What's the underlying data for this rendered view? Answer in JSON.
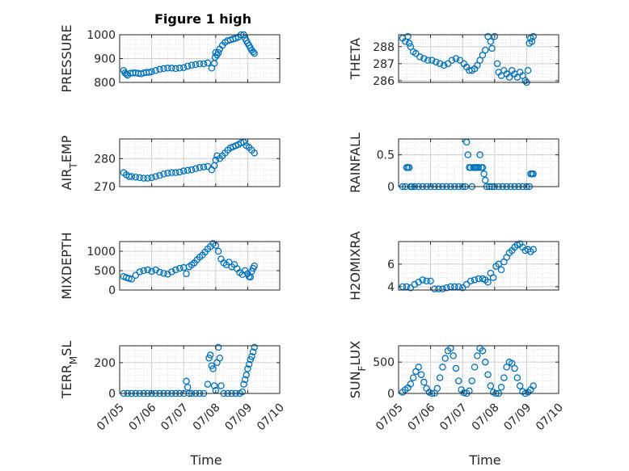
{
  "figure": {
    "title": "Figure 1 high",
    "background": "#ffffff"
  },
  "marker_color": "#0072BD",
  "grid_color": "#d9d9d9",
  "chart_data": [
    {
      "type": "scatter",
      "id": "pressure",
      "ylabel": "PRESSURE",
      "xlabel": "",
      "xlim": [
        "07/05",
        "07/10"
      ],
      "ylim": [
        800,
        1000
      ],
      "yticks": [
        800,
        900,
        1000
      ],
      "ytick_labels": [
        "800",
        "900",
        "1000"
      ],
      "x": [
        "07/05 03:00",
        "07/05 04:00",
        "07/05 05:00",
        "07/05 06:00",
        "07/05 08:00",
        "07/05 10:00",
        "07/05 12:00",
        "07/05 14:00",
        "07/05 16:00",
        "07/05 18:00",
        "07/05 20:00",
        "07/05 22:00",
        "07/06 00:00",
        "07/06 03:00",
        "07/06 06:00",
        "07/06 09:00",
        "07/06 12:00",
        "07/06 15:00",
        "07/06 18:00",
        "07/06 21:00",
        "07/07 00:00",
        "07/07 03:00",
        "07/07 06:00",
        "07/07 09:00",
        "07/07 12:00",
        "07/07 15:00",
        "07/07 18:00",
        "07/07 21:00",
        "07/07 23:00",
        "07/07 23:30",
        "07/08 00:00",
        "07/08 01:00",
        "07/08 02:00",
        "07/08 03:00",
        "07/08 05:00",
        "07/08 07:00",
        "07/08 09:00",
        "07/08 11:00",
        "07/08 13:00",
        "07/08 15:00",
        "07/08 17:00",
        "07/08 19:00",
        "07/08 21:00",
        "07/08 22:00",
        "07/08 23:00",
        "07/09 00:00",
        "07/09 01:00",
        "07/09 02:00",
        "07/09 03:00",
        "07/09 04:00",
        "07/09 05:00"
      ],
      "y": [
        850,
        840,
        835,
        830,
        838,
        840,
        840,
        838,
        836,
        840,
        842,
        842,
        845,
        850,
        855,
        858,
        860,
        860,
        858,
        860,
        862,
        868,
        872,
        875,
        878,
        878,
        882,
        860,
        880,
        905,
        925,
        915,
        925,
        940,
        955,
        968,
        975,
        978,
        982,
        985,
        990,
        1000,
        1000,
        985,
        975,
        965,
        955,
        945,
        935,
        928,
        922
      ]
    },
    {
      "type": "scatter",
      "id": "theta",
      "ylabel": "THETA",
      "xlabel": "",
      "xlim": [
        "07/05",
        "07/10"
      ],
      "ylim": [
        285.9,
        288.7
      ],
      "yticks": [
        286,
        287,
        288
      ],
      "ytick_labels": [
        "286",
        "287",
        "288"
      ],
      "x": [
        "07/05 03:00",
        "07/05 05:00",
        "07/05 07:00",
        "07/05 08:00",
        "07/05 09:00",
        "07/05 11:00",
        "07/05 13:00",
        "07/05 16:00",
        "07/05 19:00",
        "07/05 22:00",
        "07/06 01:00",
        "07/06 04:00",
        "07/06 07:00",
        "07/06 10:00",
        "07/06 13:00",
        "07/06 16:00",
        "07/06 19:00",
        "07/06 22:00",
        "07/07 01:00",
        "07/07 03:00",
        "07/07 05:00",
        "07/07 07:00",
        "07/07 09:00",
        "07/07 11:00",
        "07/07 13:00",
        "07/07 15:00",
        "07/07 17:00",
        "07/07 19:00",
        "07/07 21:00",
        "07/07 22:00",
        "07/08 00:00",
        "07/08 02:00",
        "07/08 03:00",
        "07/08 05:00",
        "07/08 07:00",
        "07/08 09:00",
        "07/08 11:00",
        "07/08 13:00",
        "07/08 15:00",
        "07/08 17:00",
        "07/08 19:00",
        "07/08 21:00",
        "07/08 23:00",
        "07/09 00:00",
        "07/09 01:00",
        "07/09 02:00",
        "07/09 03:00",
        "07/09 04:00",
        "07/09 05:00"
      ],
      "y": [
        288.5,
        288.3,
        288.6,
        288.2,
        288.0,
        287.7,
        287.6,
        287.4,
        287.3,
        287.2,
        287.2,
        287.1,
        287.0,
        286.9,
        287.0,
        287.2,
        287.3,
        287.2,
        287.0,
        286.8,
        286.6,
        286.6,
        286.7,
        286.9,
        287.2,
        287.5,
        287.8,
        288.6,
        288.3,
        287.9,
        288.6,
        287.0,
        286.5,
        286.3,
        286.6,
        286.4,
        286.2,
        286.6,
        286.4,
        286.2,
        286.5,
        286.3,
        286.0,
        285.9,
        286.6,
        288.2,
        288.5,
        288.3,
        288.6
      ]
    },
    {
      "type": "scatter",
      "id": "air-temp",
      "ylabel": "AIR_TEMP",
      "xlabel": "",
      "xlim": [
        "07/05",
        "07/10"
      ],
      "ylim": [
        270,
        287
      ],
      "yticks": [
        270,
        280
      ],
      "ytick_labels": [
        "270",
        "280"
      ],
      "x": [
        "07/05 03:00",
        "07/05 05:00",
        "07/05 07:00",
        "07/05 09:00",
        "07/05 12:00",
        "07/05 15:00",
        "07/05 18:00",
        "07/05 21:00",
        "07/06 00:00",
        "07/06 03:00",
        "07/06 06:00",
        "07/06 09:00",
        "07/06 12:00",
        "07/06 15:00",
        "07/06 18:00",
        "07/06 21:00",
        "07/07 00:00",
        "07/07 03:00",
        "07/07 06:00",
        "07/07 09:00",
        "07/07 12:00",
        "07/07 15:00",
        "07/07 18:00",
        "07/07 21:00",
        "07/07 23:00",
        "07/08 00:00",
        "07/08 01:00",
        "07/08 03:00",
        "07/08 05:00",
        "07/08 07:00",
        "07/08 09:00",
        "07/08 11:00",
        "07/08 13:00",
        "07/08 15:00",
        "07/08 17:00",
        "07/08 19:00",
        "07/08 21:00",
        "07/08 23:00",
        "07/09 01:00",
        "07/09 03:00",
        "07/09 05:00"
      ],
      "y": [
        275.0,
        274.2,
        273.6,
        273.6,
        273.4,
        273.2,
        273.0,
        273.0,
        273.2,
        273.6,
        274.0,
        274.5,
        274.8,
        275.0,
        275.0,
        275.2,
        275.6,
        275.8,
        276.0,
        276.4,
        276.8,
        277.0,
        277.2,
        276.0,
        277.5,
        279.5,
        281.0,
        280.0,
        281.0,
        282.0,
        283.0,
        283.8,
        284.2,
        284.6,
        285.0,
        285.6,
        285.8,
        284.6,
        284.0,
        283.0,
        282.0
      ]
    },
    {
      "type": "scatter",
      "id": "rainfall",
      "ylabel": "RAINFALL",
      "xlabel": "",
      "xlim": [
        "07/05",
        "07/10"
      ],
      "ylim": [
        0,
        0.75
      ],
      "yticks": [
        0,
        0.5
      ],
      "ytick_labels": [
        "0",
        "0.5"
      ],
      "x": [
        "07/05 03:00",
        "07/05 05:00",
        "07/05 06:00",
        "07/05 07:00",
        "07/05 08:00",
        "07/05 09:00",
        "07/05 10:00",
        "07/05 12:00",
        "07/05 15:00",
        "07/05 18:00",
        "07/05 21:00",
        "07/06 00:00",
        "07/06 03:00",
        "07/06 06:00",
        "07/06 09:00",
        "07/06 12:00",
        "07/06 15:00",
        "07/06 18:00",
        "07/06 21:00",
        "07/07 00:00",
        "07/07 02:00",
        "07/07 03:00",
        "07/07 04:00",
        "07/07 05:00",
        "07/07 06:00",
        "07/07 07:00",
        "07/07 08:00",
        "07/07 09:00",
        "07/07 10:00",
        "07/07 11:00",
        "07/07 12:00",
        "07/07 13:00",
        "07/07 14:00",
        "07/07 15:00",
        "07/07 16:00",
        "07/07 17:00",
        "07/07 18:00",
        "07/07 20:00",
        "07/07 22:00",
        "07/08 00:00",
        "07/08 03:00",
        "07/08 06:00",
        "07/08 09:00",
        "07/08 12:00",
        "07/08 15:00",
        "07/08 18:00",
        "07/08 21:00",
        "07/09 00:00",
        "07/09 02:00",
        "07/09 03:00",
        "07/09 04:00",
        "07/09 05:00"
      ],
      "y": [
        0,
        0,
        0.3,
        0.3,
        0.3,
        0,
        0,
        0,
        0,
        0,
        0,
        0,
        0,
        0,
        0,
        0,
        0,
        0,
        0,
        0,
        0,
        0.7,
        0.5,
        0.3,
        0.3,
        0,
        0.3,
        0.3,
        0.3,
        0.3,
        0.3,
        0.5,
        0.3,
        0.3,
        0.2,
        0.1,
        0,
        0,
        0,
        0,
        0,
        0,
        0,
        0,
        0,
        0,
        0,
        0,
        0,
        0.2,
        0.2,
        0.2
      ]
    },
    {
      "type": "scatter",
      "id": "mixdepth",
      "ylabel": "MIXDEPTH",
      "xlabel": "",
      "xlim": [
        "07/05",
        "07/10"
      ],
      "ylim": [
        0,
        1250
      ],
      "yticks": [
        0,
        500,
        1000
      ],
      "ytick_labels": [
        "0",
        "500",
        "1000"
      ],
      "x": [
        "07/05 03:00",
        "07/05 05:00",
        "07/05 07:00",
        "07/05 09:00",
        "07/05 12:00",
        "07/05 15:00",
        "07/05 18:00",
        "07/05 21:00",
        "07/06 00:00",
        "07/06 03:00",
        "07/06 06:00",
        "07/06 09:00",
        "07/06 12:00",
        "07/06 15:00",
        "07/06 18:00",
        "07/06 21:00",
        "07/07 00:00",
        "07/07 02:00",
        "07/07 04:00",
        "07/07 06:00",
        "07/07 08:00",
        "07/07 10:00",
        "07/07 12:00",
        "07/07 14:00",
        "07/07 16:00",
        "07/07 18:00",
        "07/07 20:00",
        "07/07 22:00",
        "07/08 00:00",
        "07/08 02:00",
        "07/08 04:00",
        "07/08 06:00",
        "07/08 08:00",
        "07/08 10:00",
        "07/08 12:00",
        "07/08 14:00",
        "07/08 16:00",
        "07/08 18:00",
        "07/08 20:00",
        "07/08 22:00",
        "07/09 00:00",
        "07/09 01:00",
        "07/09 02:00",
        "07/09 03:00",
        "07/09 04:00",
        "07/09 05:00"
      ],
      "y": [
        350,
        320,
        300,
        280,
        380,
        470,
        500,
        520,
        480,
        520,
        460,
        430,
        410,
        470,
        520,
        560,
        580,
        420,
        600,
        650,
        700,
        780,
        850,
        900,
        980,
        1060,
        1120,
        1200,
        1150,
        1000,
        800,
        700,
        650,
        720,
        600,
        660,
        550,
        450,
        400,
        500,
        420,
        350,
        330,
        480,
        560,
        620
      ]
    },
    {
      "type": "scatter",
      "id": "h2omixra",
      "ylabel": "H2OMIXRA",
      "xlabel": "",
      "xlim": [
        "07/05",
        "07/10"
      ],
      "ylim": [
        3.7,
        8.0
      ],
      "yticks": [
        4,
        6
      ],
      "ytick_labels": [
        "4",
        "6"
      ],
      "x": [
        "07/05 03:00",
        "07/05 06:00",
        "07/05 09:00",
        "07/05 12:00",
        "07/05 15:00",
        "07/05 18:00",
        "07/05 21:00",
        "07/06 00:00",
        "07/06 03:00",
        "07/06 06:00",
        "07/06 09:00",
        "07/06 12:00",
        "07/06 15:00",
        "07/06 18:00",
        "07/06 21:00",
        "07/07 00:00",
        "07/07 03:00",
        "07/07 06:00",
        "07/07 09:00",
        "07/07 12:00",
        "07/07 15:00",
        "07/07 17:00",
        "07/07 19:00",
        "07/07 21:00",
        "07/07 23:00",
        "07/08 01:00",
        "07/08 03:00",
        "07/08 05:00",
        "07/08 07:00",
        "07/08 09:00",
        "07/08 11:00",
        "07/08 13:00",
        "07/08 15:00",
        "07/08 17:00",
        "07/08 19:00",
        "07/08 21:00",
        "07/08 23:00",
        "07/09 01:00",
        "07/09 03:00",
        "07/09 05:00"
      ],
      "y": [
        4.0,
        4.0,
        3.9,
        4.2,
        4.4,
        4.6,
        4.5,
        4.5,
        3.8,
        3.8,
        3.8,
        3.9,
        4.0,
        4.0,
        4.0,
        3.9,
        4.2,
        4.5,
        4.6,
        4.7,
        4.7,
        4.6,
        4.4,
        5.2,
        4.8,
        5.8,
        6.0,
        5.5,
        6.2,
        6.6,
        7.0,
        7.2,
        7.5,
        7.7,
        7.8,
        7.5,
        7.2,
        7.3,
        7.1,
        7.3
      ]
    },
    {
      "type": "scatter",
      "id": "terr-msl",
      "ylabel": "TERR_MSL",
      "xlabel": "Time",
      "xlim": [
        "07/05",
        "07/10"
      ],
      "ylim": [
        0,
        310
      ],
      "yticks": [
        0,
        200
      ],
      "ytick_labels": [
        "0",
        "200"
      ],
      "xticks": [
        "07/05",
        "07/06",
        "07/07",
        "07/08",
        "07/09",
        "07/10"
      ],
      "x": [
        "07/05 03:00",
        "07/05 06:00",
        "07/05 09:00",
        "07/05 12:00",
        "07/05 15:00",
        "07/05 18:00",
        "07/05 21:00",
        "07/06 00:00",
        "07/06 03:00",
        "07/06 06:00",
        "07/06 09:00",
        "07/06 12:00",
        "07/06 15:00",
        "07/06 18:00",
        "07/06 21:00",
        "07/07 00:00",
        "07/07 02:00",
        "07/07 03:00",
        "07/07 04:00",
        "07/07 06:00",
        "07/07 09:00",
        "07/07 12:00",
        "07/07 15:00",
        "07/07 18:00",
        "07/07 19:00",
        "07/07 20:00",
        "07/07 21:00",
        "07/07 22:00",
        "07/07 23:00",
        "07/08 00:00",
        "07/08 01:00",
        "07/08 02:00",
        "07/08 03:00",
        "07/08 04:00",
        "07/08 06:00",
        "07/08 09:00",
        "07/08 12:00",
        "07/08 15:00",
        "07/08 18:00",
        "07/08 20:00",
        "07/08 21:00",
        "07/08 22:00",
        "07/08 23:00",
        "07/09 00:00",
        "07/09 01:00",
        "07/09 02:00",
        "07/09 03:00",
        "07/09 04:00",
        "07/09 05:00"
      ],
      "y": [
        0,
        0,
        0,
        0,
        0,
        0,
        0,
        0,
        0,
        0,
        0,
        0,
        0,
        0,
        0,
        0,
        80,
        40,
        0,
        0,
        0,
        0,
        0,
        60,
        230,
        250,
        180,
        160,
        50,
        20,
        200,
        300,
        230,
        50,
        0,
        0,
        0,
        0,
        0,
        10,
        60,
        90,
        120,
        160,
        190,
        220,
        240,
        270,
        300
      ]
    },
    {
      "type": "scatter",
      "id": "sun-flux",
      "ylabel": "SUN_FLUX",
      "xlabel": "Time",
      "xlim": [
        "07/05",
        "07/10"
      ],
      "ylim": [
        0,
        760
      ],
      "yticks": [
        0,
        500
      ],
      "ytick_labels": [
        "0",
        "500"
      ],
      "xticks": [
        "07/05",
        "07/06",
        "07/07",
        "07/08",
        "07/09",
        "07/10"
      ],
      "x": [
        "07/05 03:00",
        "07/05 05:00",
        "07/05 07:00",
        "07/05 09:00",
        "07/05 11:00",
        "07/05 13:00",
        "07/05 15:00",
        "07/05 17:00",
        "07/05 19:00",
        "07/05 21:00",
        "07/05 23:00",
        "07/06 01:00",
        "07/06 03:00",
        "07/06 05:00",
        "07/06 07:00",
        "07/06 09:00",
        "07/06 11:00",
        "07/06 13:00",
        "07/06 15:00",
        "07/06 17:00",
        "07/06 19:00",
        "07/06 21:00",
        "07/06 23:00",
        "07/07 01:00",
        "07/07 03:00",
        "07/07 05:00",
        "07/07 07:00",
        "07/07 09:00",
        "07/07 11:00",
        "07/07 13:00",
        "07/07 15:00",
        "07/07 17:00",
        "07/07 19:00",
        "07/07 21:00",
        "07/07 23:00",
        "07/08 01:00",
        "07/08 03:00",
        "07/08 05:00",
        "07/08 07:00",
        "07/08 09:00",
        "07/08 11:00",
        "07/08 13:00",
        "07/08 15:00",
        "07/08 17:00",
        "07/08 19:00",
        "07/08 21:00",
        "07/08 23:00",
        "07/09 01:00",
        "07/09 03:00",
        "07/09 05:00"
      ],
      "y": [
        20,
        60,
        90,
        150,
        250,
        350,
        420,
        300,
        180,
        80,
        20,
        0,
        5,
        80,
        250,
        420,
        560,
        680,
        720,
        600,
        400,
        200,
        60,
        10,
        0,
        40,
        200,
        420,
        600,
        720,
        680,
        500,
        300,
        120,
        20,
        0,
        0,
        100,
        250,
        420,
        500,
        480,
        400,
        250,
        120,
        30,
        0,
        20,
        60,
        120
      ]
    }
  ]
}
